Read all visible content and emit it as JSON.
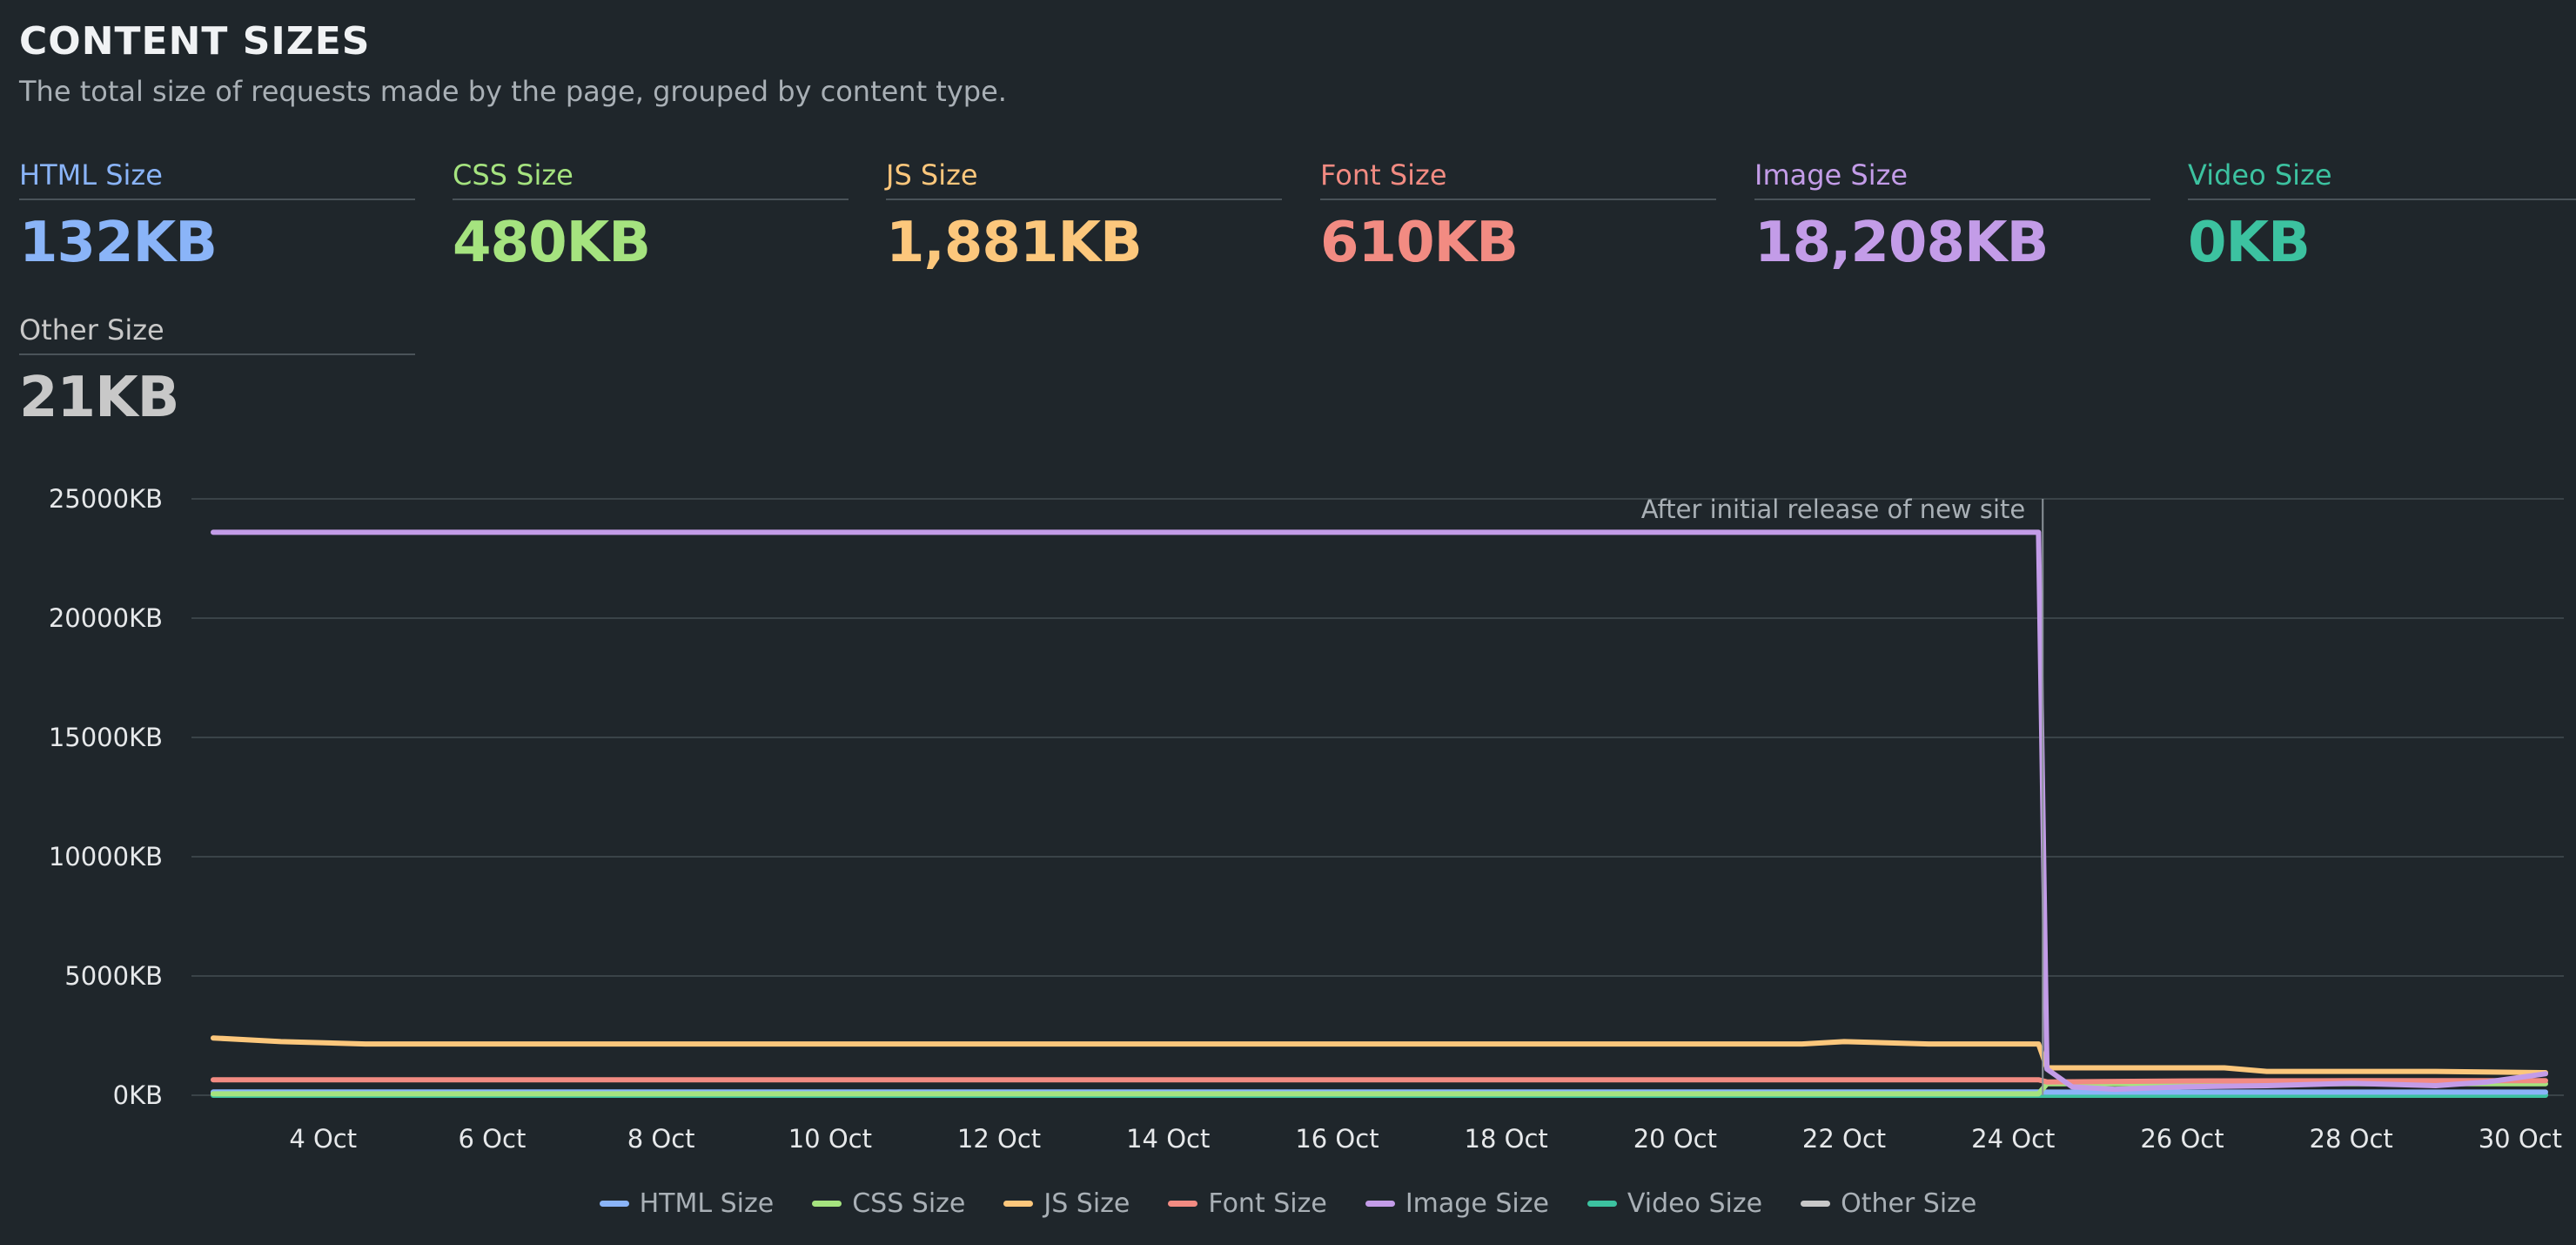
{
  "header": {
    "title": "CONTENT SIZES",
    "subtitle": "The total size of requests made by the page, grouped by content type."
  },
  "metrics": [
    {
      "label": "HTML Size",
      "value": "132KB",
      "color": "#8ab4f8"
    },
    {
      "label": "CSS Size",
      "value": "480KB",
      "color": "#a5e37f"
    },
    {
      "label": "JS Size",
      "value": "1,881KB",
      "color": "#fcc77c"
    },
    {
      "label": "Font Size",
      "value": "610KB",
      "color": "#f28b82"
    },
    {
      "label": "Image Size",
      "value": "18,208KB",
      "color": "#c39ce8"
    },
    {
      "label": "Video Size",
      "value": "0KB",
      "color": "#3cc2a0"
    },
    {
      "label": "Other Size",
      "value": "21KB",
      "color": "#c8c8c8"
    }
  ],
  "chart_data": {
    "type": "line",
    "title": "",
    "xlabel": "",
    "ylabel": "",
    "ylim": [
      0,
      25000
    ],
    "y_unit": "KB",
    "y_ticks": [
      0,
      5000,
      10000,
      15000,
      20000,
      25000
    ],
    "y_tick_labels": [
      "0KB",
      "5000KB",
      "10000KB",
      "15000KB",
      "20000KB",
      "25000KB"
    ],
    "x_range": [
      2.7,
      30.3
    ],
    "x_ticks": [
      4,
      6,
      8,
      10,
      12,
      14,
      16,
      18,
      20,
      22,
      24,
      26,
      28,
      30
    ],
    "x_tick_labels": [
      "4 Oct",
      "6 Oct",
      "8 Oct",
      "10 Oct",
      "12 Oct",
      "14 Oct",
      "16 Oct",
      "18 Oct",
      "20 Oct",
      "22 Oct",
      "24 Oct",
      "26 Oct",
      "28 Oct",
      "30 Oct"
    ],
    "annotation": {
      "x": 24.35,
      "text": "After initial release of new site"
    },
    "legend_position": "bottom-center",
    "series": [
      {
        "name": "Other Size",
        "color": "#c8c8c8",
        "x": [
          2.7,
          24.3,
          24.4,
          30.3
        ],
        "values": [
          20,
          20,
          21,
          21
        ]
      },
      {
        "name": "Video Size",
        "color": "#3cc2a0",
        "x": [
          2.7,
          30.3
        ],
        "values": [
          0,
          0
        ]
      },
      {
        "name": "HTML Size",
        "color": "#8ab4f8",
        "x": [
          2.7,
          24.3,
          24.4,
          30.3
        ],
        "values": [
          140,
          140,
          130,
          132
        ]
      },
      {
        "name": "CSS Size",
        "color": "#a5e37f",
        "x": [
          2.7,
          24.3,
          24.4,
          30.3
        ],
        "values": [
          60,
          60,
          480,
          480
        ]
      },
      {
        "name": "Font Size",
        "color": "#f28b82",
        "x": [
          2.7,
          24.3,
          24.4,
          26,
          28,
          30.3
        ],
        "values": [
          650,
          650,
          560,
          600,
          610,
          610
        ]
      },
      {
        "name": "JS Size",
        "color": "#fcc77c",
        "x": [
          2.7,
          3.5,
          4.5,
          6,
          8,
          10,
          12,
          14,
          16,
          18,
          20,
          21.5,
          22,
          23,
          24.3,
          24.4,
          25,
          26,
          26.5,
          27,
          28,
          29,
          30.3
        ],
        "values": [
          2400,
          2250,
          2150,
          2150,
          2150,
          2150,
          2150,
          2150,
          2150,
          2150,
          2150,
          2150,
          2250,
          2150,
          2150,
          1150,
          1150,
          1150,
          1150,
          1000,
          1000,
          1000,
          950
        ]
      },
      {
        "name": "Image Size",
        "color": "#c39ce8",
        "x": [
          2.7,
          24.3,
          24.4,
          24.7,
          25.2,
          26,
          27,
          28,
          29,
          29.6,
          30.3
        ],
        "values": [
          23600,
          23600,
          1100,
          350,
          250,
          350,
          400,
          500,
          400,
          550,
          900
        ]
      }
    ]
  },
  "legend": [
    {
      "name": "HTML Size",
      "color": "#8ab4f8"
    },
    {
      "name": "CSS Size",
      "color": "#a5e37f"
    },
    {
      "name": "JS Size",
      "color": "#fcc77c"
    },
    {
      "name": "Font Size",
      "color": "#f28b82"
    },
    {
      "name": "Image Size",
      "color": "#c39ce8"
    },
    {
      "name": "Video Size",
      "color": "#3cc2a0"
    },
    {
      "name": "Other Size",
      "color": "#c8c8c8"
    }
  ]
}
